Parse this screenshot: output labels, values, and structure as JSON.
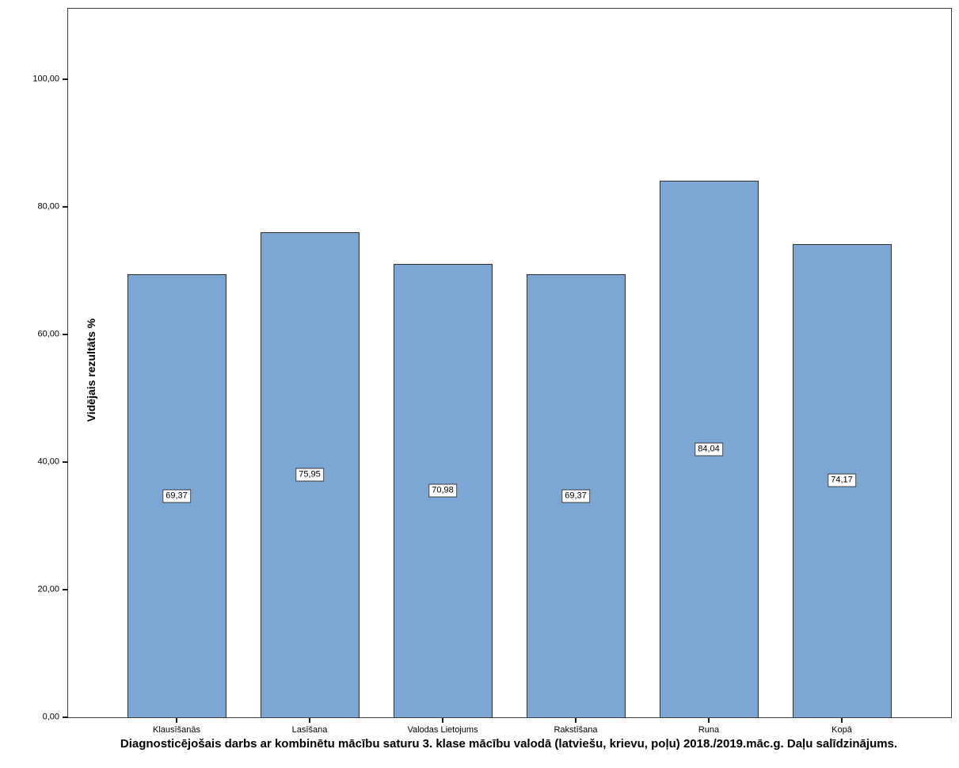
{
  "chart_data": {
    "type": "bar",
    "title": "Diagnosticējošais darbs ar kombinētu mācību saturu 3. klase mācību valodā (latviešu, krievu, poļu) 2018./2019.māc.g. Daļu salīdzinājums.",
    "ylabel": "Vidējais rezultāts %",
    "xlabel": "",
    "categories": [
      "Klausīšanās",
      "Lasīšana",
      "Valodas Lietojums",
      "Rakstīšana",
      "Runa",
      "Kopā"
    ],
    "values": [
      69.37,
      75.95,
      70.98,
      69.37,
      84.04,
      74.17
    ],
    "value_labels": [
      "69,37",
      "75,95",
      "70,98",
      "69,37",
      "84,04",
      "74,17"
    ],
    "yticks": [
      0,
      20,
      40,
      60,
      80,
      100
    ],
    "ytick_labels": [
      "0,00",
      "20,00",
      "40,00",
      "60,00",
      "80,00",
      "100,00"
    ],
    "ylim": [
      0,
      111
    ],
    "grid": false,
    "legend": null,
    "value_label_position": "center-of-bar",
    "bar_color": "#7CA6D4",
    "bar_border_color": "#2F2F2F",
    "frame_color": "#3F3F3F",
    "text_color": "#000000",
    "background_color": "#FFFFFF"
  }
}
